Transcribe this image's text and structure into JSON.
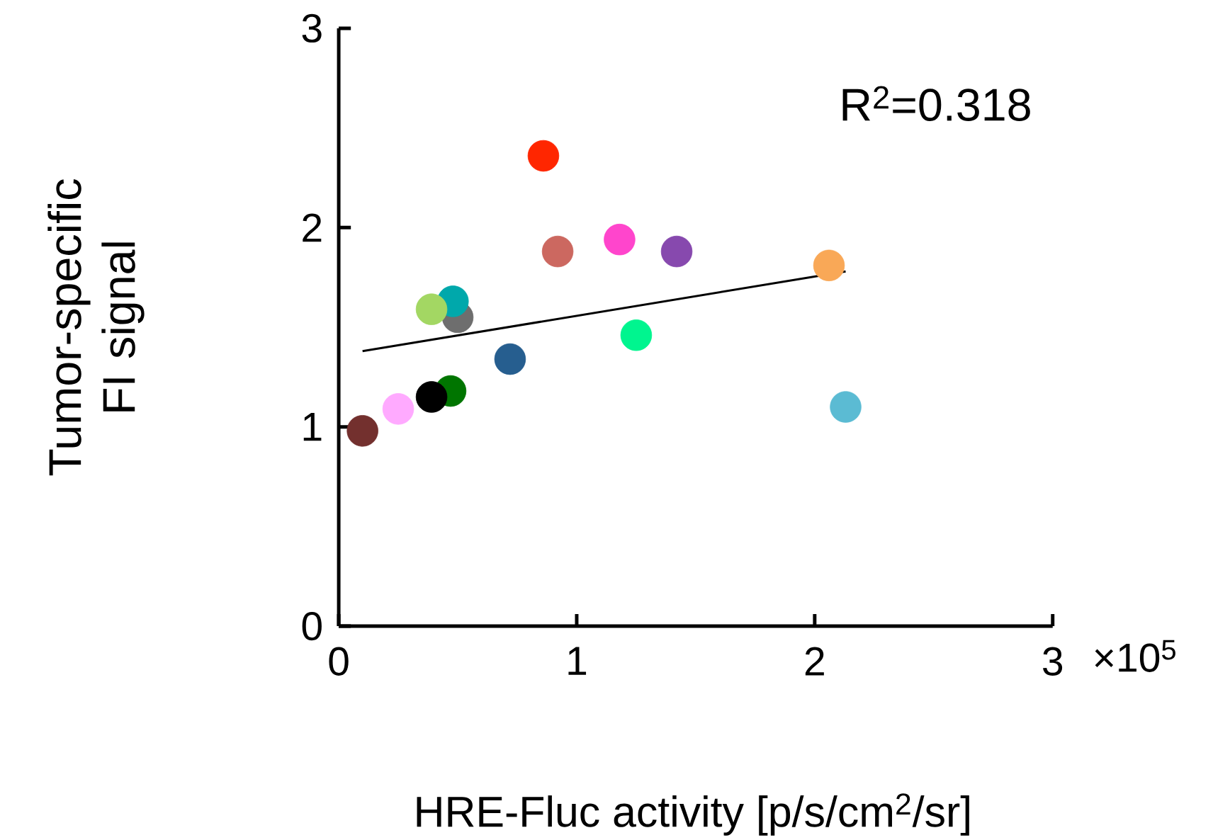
{
  "chart_data": {
    "type": "scatter",
    "xlabel": "HRE-Fluc activity [p/s/cm$^{2}$/sr]",
    "ylabel": "Tumor-specific FI signal",
    "annotations": [
      "R$^{2}$=0.318",
      "×10$^{5}$"
    ],
    "xlim": [
      0,
      3
    ],
    "ylim": [
      0,
      3
    ],
    "xticks": [
      0,
      1,
      2,
      3
    ],
    "yticks": [
      0,
      1,
      2,
      3
    ],
    "grid": false,
    "marker": "circle",
    "series": [
      {
        "type": "scatter",
        "x": [
          0.86,
          0.92,
          1.18,
          1.42,
          2.06,
          0.5,
          0.48,
          0.39,
          1.25,
          0.72,
          0.47,
          0.39,
          0.25,
          0.1,
          2.13
        ],
        "values": [
          2.36,
          1.88,
          1.94,
          1.88,
          1.81,
          1.55,
          1.63,
          1.59,
          1.46,
          1.34,
          1.18,
          1.15,
          1.09,
          0.98,
          1.1
        ],
        "colors": [
          "#ff2600",
          "#cc6860",
          "#ff45cc",
          "#8749ae",
          "#f9a857",
          "#6e6e6e",
          "#00a8ab",
          "#a3d763",
          "#00f58f",
          "#265e8f",
          "#007500",
          "#000000",
          "#ffaaff",
          "#73302e",
          "#5bbbd3"
        ]
      },
      {
        "type": "line",
        "x": [
          0.1,
          2.13
        ],
        "values": [
          1.38,
          1.78
        ],
        "color": "#000000",
        "marker": "none"
      }
    ]
  }
}
